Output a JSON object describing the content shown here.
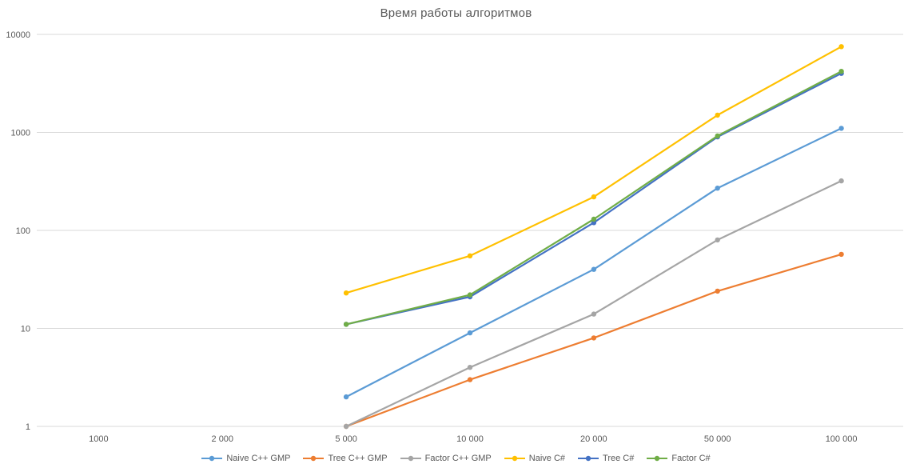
{
  "chart_data": {
    "type": "line",
    "title": "Время работы алгоритмов",
    "categories": [
      "1000",
      "2 000",
      "5 000",
      "10 000",
      "20 000",
      "50 000",
      "100 000"
    ],
    "y_axis": {
      "scale": "log",
      "min": 1,
      "max": 10000,
      "ticks": [
        "1",
        "10",
        "100",
        "1000",
        "10000"
      ]
    },
    "grid": "horizontal-major",
    "legend_position": "bottom",
    "colors": {
      "grid": "#d9d9d9",
      "axis": "#d9d9d9",
      "text": "#595959"
    },
    "series": [
      {
        "name": "Naive C++ GMP",
        "color": "#5b9bd5",
        "values": [
          null,
          null,
          2,
          9,
          40,
          270,
          1100
        ]
      },
      {
        "name": "Tree C++ GMP",
        "color": "#ed7d31",
        "values": [
          null,
          null,
          1,
          3,
          8,
          24,
          57
        ]
      },
      {
        "name": "Factor C++ GMP",
        "color": "#a5a5a5",
        "values": [
          null,
          null,
          1,
          4,
          14,
          80,
          320
        ]
      },
      {
        "name": "Naive C#",
        "color": "#ffc000",
        "values": [
          null,
          null,
          23,
          55,
          220,
          1500,
          7500
        ]
      },
      {
        "name": "Tree C#",
        "color": "#4472c4",
        "values": [
          null,
          null,
          11,
          21,
          120,
          900,
          4000
        ]
      },
      {
        "name": "Factor C#",
        "color": "#70ad47",
        "values": [
          null,
          null,
          11,
          22,
          130,
          920,
          4200
        ]
      }
    ]
  }
}
